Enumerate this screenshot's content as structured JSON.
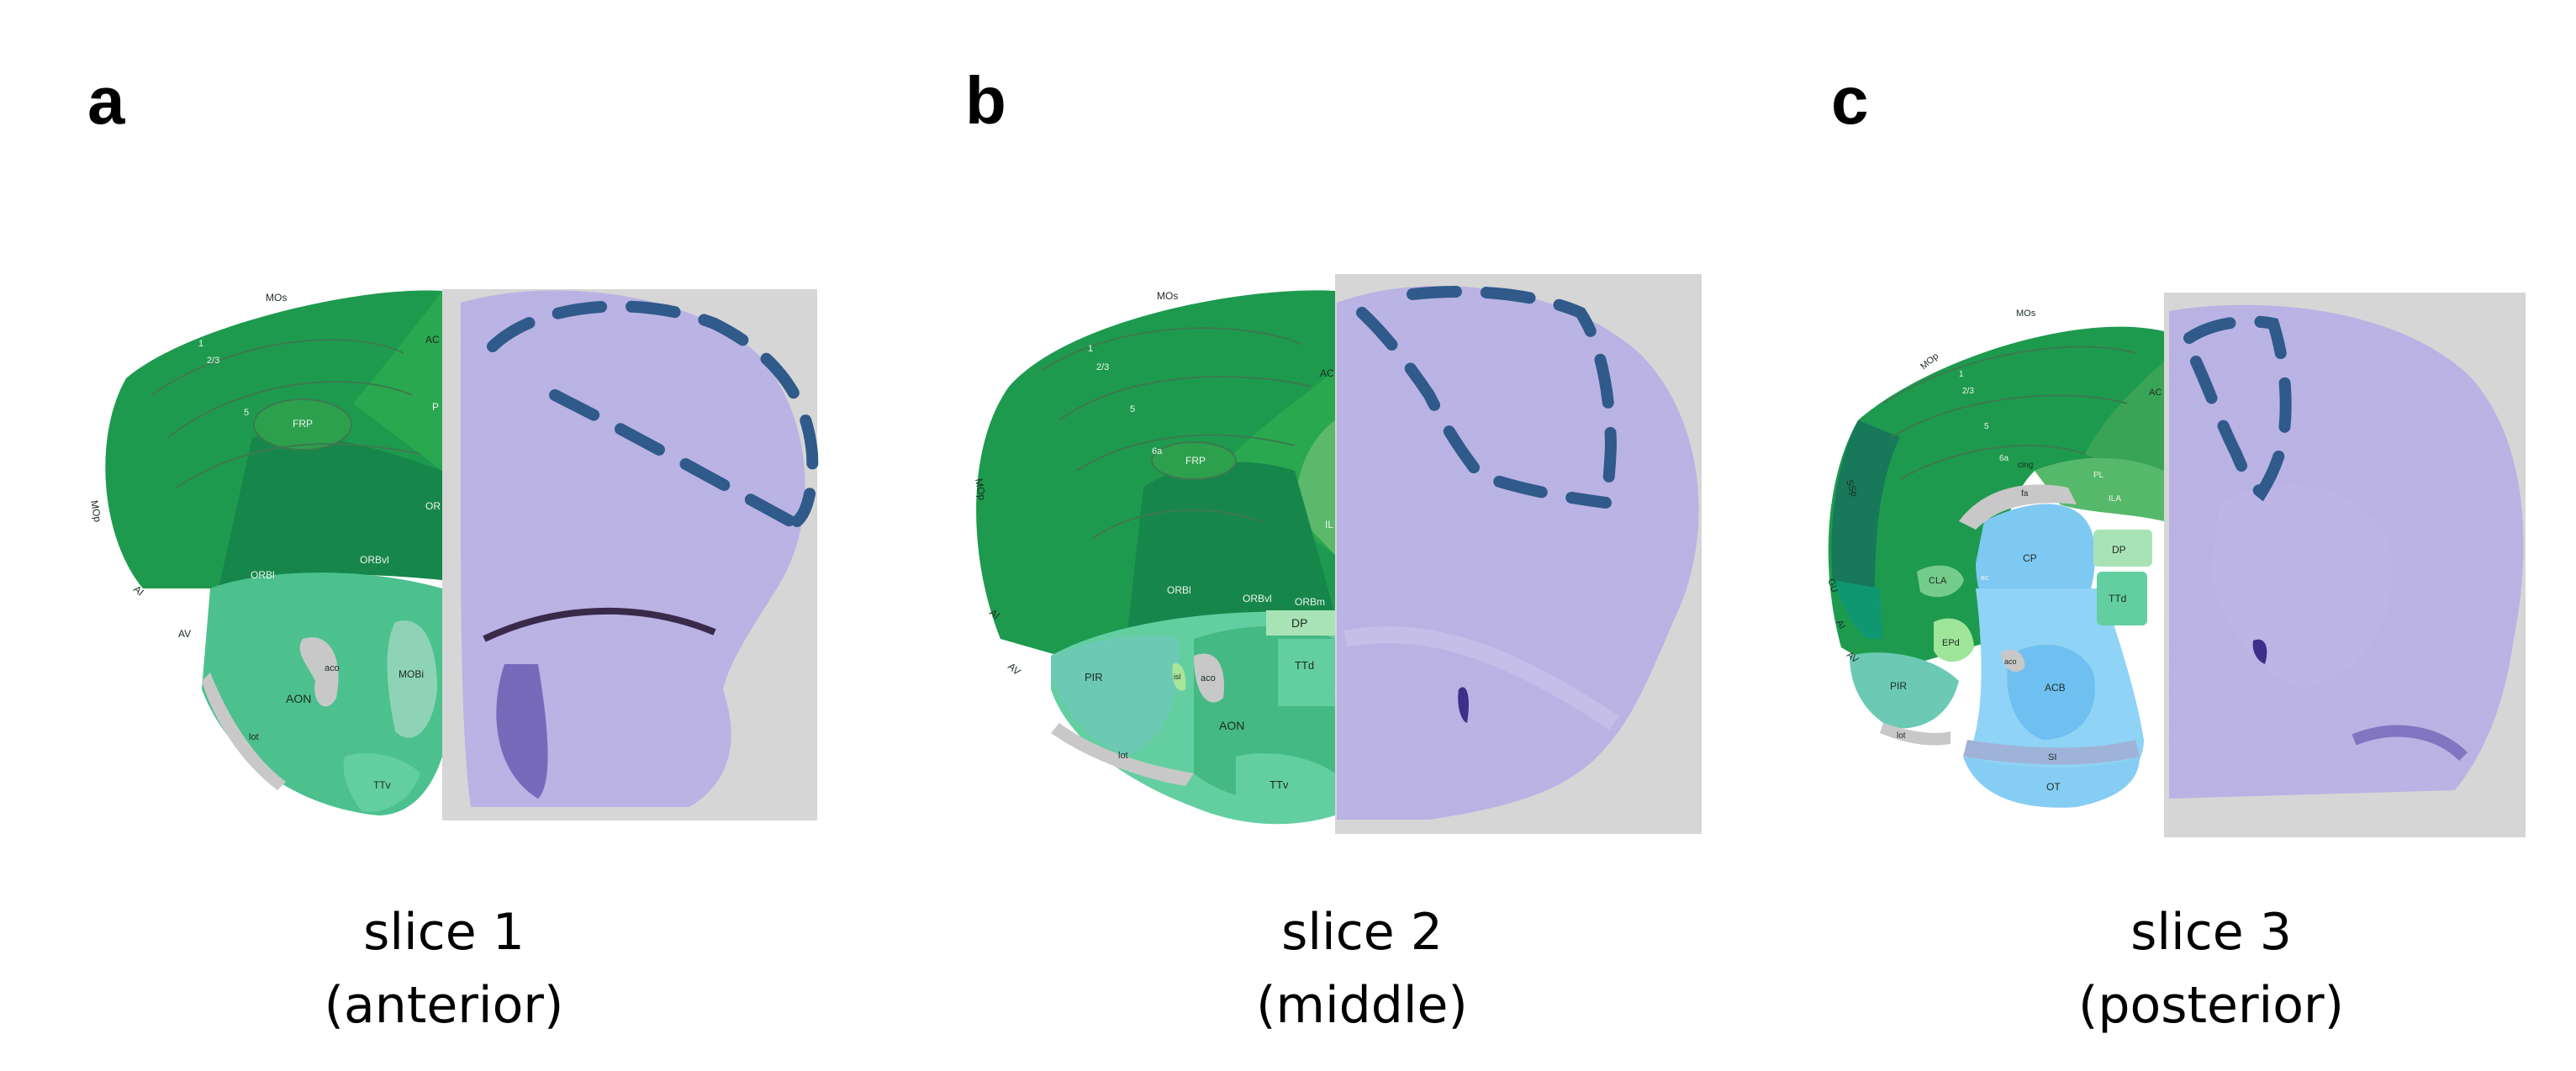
{
  "panels": [
    {
      "letter": "a",
      "caption_line1": "slice 1",
      "caption_line2": "(anterior)",
      "atlas_labels": {
        "mos": "MOs",
        "mop": "MOp",
        "l1": "1",
        "l23": "2/3",
        "l5": "5",
        "frp": "FRP",
        "ac": "AC",
        "orbl": "ORBl",
        "orbvl": "ORBvl",
        "ai": "AI",
        "av": "AV",
        "aco": "aco",
        "aon": "AON",
        "mobi": "MOBi",
        "lot": "lot",
        "ttv": "TTv",
        "or": "OR",
        "p": "P"
      }
    },
    {
      "letter": "b",
      "caption_line1": "slice 2",
      "caption_line2": "(middle)",
      "atlas_labels": {
        "mos": "MOs",
        "mop": "MOp",
        "l1": "1",
        "l23": "2/3",
        "l5": "5",
        "l6a": "6a",
        "frp": "FRP",
        "ac": "AC",
        "orbl": "ORBl",
        "orbvl": "ORBvl",
        "orbm": "ORBm",
        "ai": "AI",
        "av": "AV",
        "dp": "DP",
        "ttd": "TTd",
        "pir": "PIR",
        "isl": "isl",
        "aco": "aco",
        "aon": "AON",
        "lot": "lot",
        "ttv": "TTv",
        "il": "IL"
      }
    },
    {
      "letter": "c",
      "caption_line1": "slice 3",
      "caption_line2": "(posterior)",
      "atlas_labels": {
        "mos": "MOs",
        "mop": "MOp",
        "ssp": "SSp",
        "l1": "1",
        "l23": "2/3",
        "l5": "5",
        "ac": "AC",
        "cing": "cing",
        "fa": "fa",
        "cp": "CP",
        "dp": "DP",
        "ttd": "TTd",
        "cla": "CLA",
        "epd": "EPd",
        "aco": "aco",
        "acb": "ACB",
        "pir": "PIR",
        "lot": "lot",
        "si": "SI",
        "ot": "OT",
        "gu": "GU",
        "ai": "AI",
        "av": "AV",
        "ec": "ec",
        "6a": "6a",
        "pl": "PL",
        "ila": "ILA"
      }
    }
  ],
  "colors": {
    "cortex_green": "#1e9a4e",
    "cortex_dark": "#17864a",
    "frontal_light": "#2aa84f",
    "olfactory_teal": "#4cc18e",
    "olfactory_mint": "#63cfa0",
    "aon_green": "#45b983",
    "striatum_blue": "#7ec9f2",
    "pallidum_blue": "#8fd3f6",
    "fiber_gray": "#c8c8c8",
    "nissl_purple": "#8e86cf",
    "outline_dash": "#2f5a8a",
    "backdrop_gray": "#d6d6d6"
  }
}
